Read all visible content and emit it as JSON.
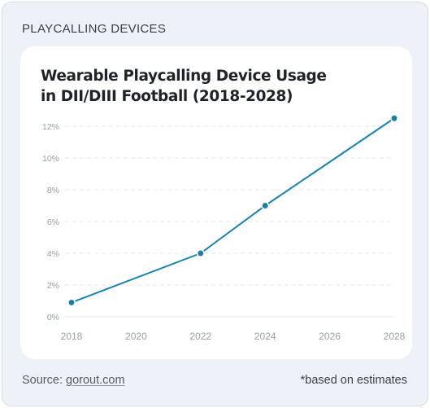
{
  "section_label": "PLAYCALLING DEVICES",
  "chart_title_line1": "Wearable Playcalling Device Usage",
  "chart_title_line2": "in DII/DIII Football (2018-2028)",
  "footer": {
    "source_prefix": "Source: ",
    "source_link": "gorout.com",
    "note": "*based on estimates"
  },
  "colors": {
    "line": "#1683b0",
    "point": "#1a7fa8",
    "grid": "#e6e8ec"
  },
  "chart_data": {
    "type": "line",
    "title": "Wearable Playcalling Device Usage in DII/DIII Football (2018-2028)",
    "x_ticks": [
      "2018",
      "2020",
      "2022",
      "2024",
      "2026",
      "2028"
    ],
    "y_ticks": [
      "0%",
      "2%",
      "4%",
      "6%",
      "8%",
      "10%",
      "12%"
    ],
    "xlim": [
      2018,
      2028
    ],
    "ylim": [
      0,
      12
    ],
    "grid": true,
    "series": [
      {
        "x": [
          2018,
          2022,
          2024,
          2028
        ],
        "y": [
          0.9,
          4.0,
          7.0,
          12.5
        ]
      }
    ]
  }
}
